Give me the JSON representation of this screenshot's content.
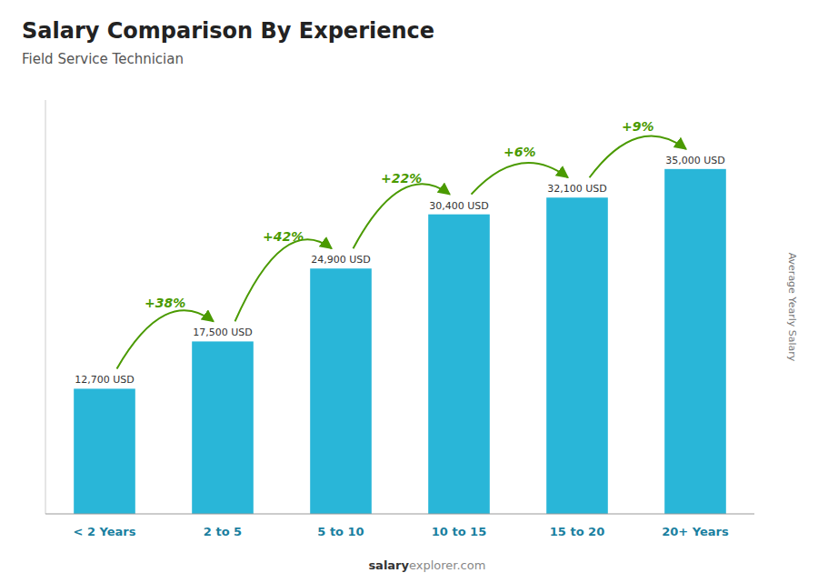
{
  "chart_data": {
    "type": "bar",
    "title": "Salary Comparison By Experience",
    "subtitle": "Field Service Technician",
    "categories": [
      "< 2 Years",
      "2 to 5",
      "5 to 10",
      "10 to 15",
      "15 to 20",
      "20+ Years"
    ],
    "values": [
      12700,
      17500,
      24900,
      30400,
      32100,
      35000
    ],
    "value_labels": [
      "12,700 USD",
      "17,500 USD",
      "24,900 USD",
      "30,400 USD",
      "32,100 USD",
      "35,000 USD"
    ],
    "data_labels": true,
    "annotations": [
      "+38%",
      "+42%",
      "+22%",
      "+6%",
      "+9%"
    ],
    "y_label": "Average Yearly Salary",
    "footer": [
      "salary",
      "explorer.com"
    ],
    "color": "#29b6d8",
    "ylim": [
      0,
      42000
    ],
    "tick_labels": "x",
    "grid": false
  }
}
